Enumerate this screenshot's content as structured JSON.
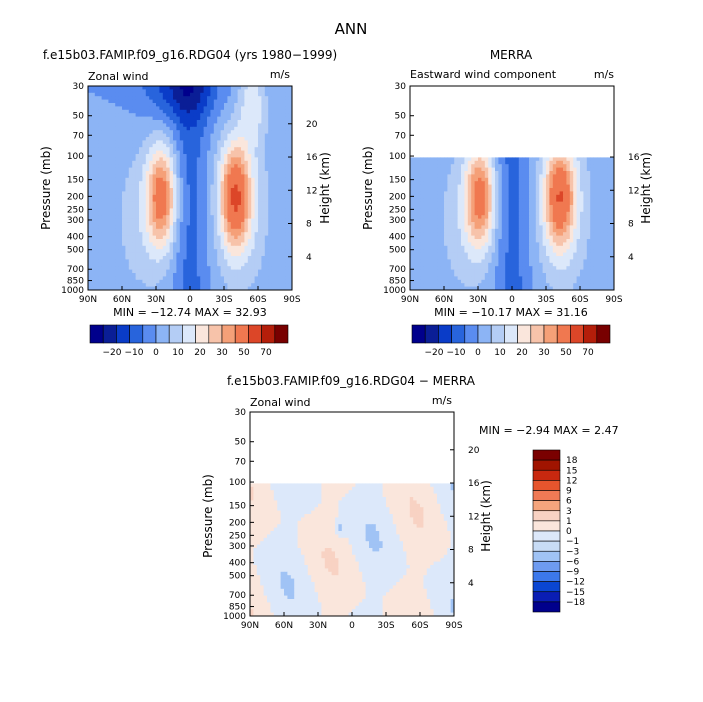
{
  "figure_title": "ANN",
  "palette": {
    "abs": [
      "#00008c",
      "#0a1e96",
      "#0a3cc8",
      "#2864dc",
      "#5a8cf0",
      "#8cb4f5",
      "#b4cdf5",
      "#dce8fa",
      "#fae6dc",
      "#f7c3aa",
      "#f5a078",
      "#f07850",
      "#dc4628",
      "#b41e0a",
      "#780000"
    ],
    "diff": [
      "#00008c",
      "#0a1eb4",
      "#0a46d2",
      "#3c78eb",
      "#6e9bf0",
      "#a0c3f5",
      "#c8dcf5",
      "#dce8fa",
      "#fae6dc",
      "#f8d2c3",
      "#f5a57d",
      "#f07a55",
      "#e6552d",
      "#c8280f",
      "#a01400",
      "#7a0000"
    ]
  },
  "chart_data": [
    {
      "type": "heatmap",
      "title": "f.e15b03.FAMIP.f09_g16.RDG04 (yrs 1980−1999)",
      "subtitle_left": "Zonal wind",
      "units": "m/s",
      "ylabel": "Pressure (mb)",
      "ylabel_right": "Height (km)",
      "x_ticks": [
        "90N",
        "60N",
        "30N",
        "0",
        "30S",
        "60S",
        "90S"
      ],
      "y_ticks": [
        "30",
        "50",
        "70",
        "100",
        "150",
        "200",
        "250",
        "300",
        "400",
        "500",
        "700",
        "850",
        "1000"
      ],
      "y_ticks_right": [
        "20",
        "16",
        "12",
        "8",
        "4"
      ],
      "ylim": [
        1000,
        30
      ],
      "stats": "MIN = −12.74   MAX =  32.93",
      "colorbar_labels": [
        "−20",
        "−10",
        "0",
        "10",
        "20",
        "30",
        "50",
        "70"
      ],
      "jets": [
        {
          "lat": 25,
          "p": 200,
          "max_ms": 30
        },
        {
          "lat": -40,
          "p": 200,
          "max_ms": 33
        }
      ],
      "min_value": -12.74,
      "max_value": 32.93
    },
    {
      "type": "heatmap",
      "title": "MERRA",
      "subtitle_left": "Eastward wind component",
      "units": "m/s",
      "ylabel": "Pressure (mb)",
      "ylabel_right": "Height (km)",
      "x_ticks": [
        "90N",
        "60N",
        "30N",
        "0",
        "30S",
        "60S",
        "90S"
      ],
      "y_ticks": [
        "30",
        "50",
        "70",
        "100",
        "150",
        "200",
        "250",
        "300",
        "400",
        "500",
        "700",
        "850",
        "1000"
      ],
      "y_ticks_right": [
        "16",
        "12",
        "8",
        "4"
      ],
      "ylim": [
        1000,
        30
      ],
      "data_top_pressure": 100,
      "stats": "MIN = −10.17   MAX =  31.16",
      "colorbar_labels": [
        "−20",
        "−10",
        "0",
        "10",
        "20",
        "30",
        "50",
        "70"
      ],
      "jets": [
        {
          "lat": 28,
          "p": 200,
          "max_ms": 29
        },
        {
          "lat": -42,
          "p": 200,
          "max_ms": 31
        }
      ],
      "min_value": -10.17,
      "max_value": 31.16
    },
    {
      "type": "heatmap",
      "title": "f.e15b03.FAMIP.f09_g16.RDG04 − MERRA",
      "subtitle_left": "Zonal wind",
      "units": "m/s",
      "ylabel": "Pressure (mb)",
      "ylabel_right": "Height (km)",
      "x_ticks": [
        "90N",
        "60N",
        "30N",
        "0",
        "30S",
        "60S",
        "90S"
      ],
      "y_ticks": [
        "30",
        "50",
        "70",
        "100",
        "150",
        "200",
        "250",
        "300",
        "400",
        "500",
        "700",
        "850",
        "1000"
      ],
      "y_ticks_right": [
        "20",
        "16",
        "12",
        "8",
        "4"
      ],
      "ylim": [
        1000,
        30
      ],
      "data_top_pressure": 100,
      "stats": "MIN =   −2.94   MAX =    2.47",
      "colorbar_labels": [
        "18",
        "15",
        "12",
        "9",
        "6",
        "3",
        "1",
        "0",
        "−1",
        "−3",
        "−6",
        "−9",
        "−12",
        "−15",
        "−18"
      ],
      "min_value": -2.94,
      "max_value": 2.47
    }
  ]
}
